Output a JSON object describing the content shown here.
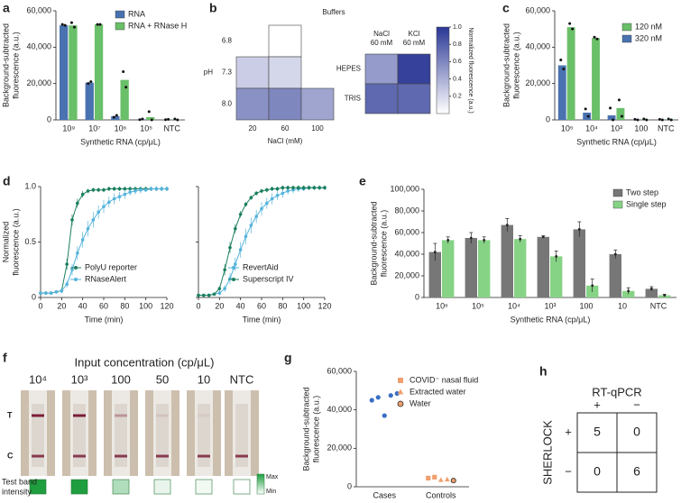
{
  "chart_data": [
    {
      "panel": "a",
      "type": "bar",
      "categories": [
        "10⁹",
        "10⁷",
        "10⁶",
        "10⁵",
        "NTC"
      ],
      "series": [
        {
          "name": "RNA",
          "color": "#4a72b0",
          "values": [
            52000,
            20500,
            2000,
            300,
            200
          ],
          "points": [
            [
              52500,
              52000
            ],
            [
              20000,
              21000
            ],
            [
              1500,
              2500
            ],
            [
              100,
              500
            ],
            [
              100,
              300
            ]
          ]
        },
        {
          "name": "RNA + RNase H",
          "color": "#6abf69",
          "values": [
            52000,
            52500,
            22000,
            1500,
            200
          ],
          "points": [
            [
              53500,
              51000
            ],
            [
              52500,
              52500
            ],
            [
              26500,
              18000
            ],
            [
              4500,
              0
            ],
            [
              500,
              0
            ]
          ]
        }
      ],
      "ylim": [
        0,
        60000
      ],
      "yticks": [
        0,
        {
          "value": 20000,
          "label": "20,000"
        },
        {
          "value": 40000,
          "label": "40,000"
        },
        {
          "value": 60000,
          "label": "60,000"
        }
      ],
      "ylabel": [
        "Background-subtracted",
        "fluorescence (a.u.)"
      ],
      "xlabel": "Synthetic RNA (cp/μL)",
      "legend": "top-right"
    },
    {
      "panel": "b",
      "type": "heatmap",
      "title": "Buffers",
      "heatmaps": [
        {
          "ylabel": "pH",
          "xlabel": "NaCl (mM)",
          "rows": [
            "6.8",
            "7.3",
            "8.0"
          ],
          "columns": [
            "20",
            "60",
            "100"
          ],
          "values": [
            [
              null,
              0.0,
              null
            ],
            [
              0.25,
              0.2,
              null
            ],
            [
              0.55,
              0.6,
              0.45
            ]
          ]
        },
        {
          "rows": [
            "HEPES",
            "TRIS"
          ],
          "columns": [
            [
              "NaCl",
              "60 mM"
            ],
            [
              "KCl",
              "60 mM"
            ]
          ],
          "values": [
            [
              0.5,
              0.95
            ],
            [
              0.75,
              0.75
            ]
          ]
        }
      ],
      "colorbar": {
        "label": "Normalized fluorescence (a.u.)",
        "lim": [
          0,
          1
        ],
        "ticks": [
          0.2,
          0.4,
          0.6,
          0.8,
          {
            "value": 1,
            "label": "1.0"
          }
        ],
        "colors": [
          "#ffffff",
          "#2a3795"
        ]
      }
    },
    {
      "panel": "c",
      "type": "bar",
      "categories": [
        "10⁵",
        "10⁴",
        "10³",
        "100",
        "NTC"
      ],
      "series": [
        {
          "name": "320 nM",
          "color": "#4a72b0",
          "values": [
            30000,
            4000,
            2500,
            200,
            200
          ],
          "points": [
            [
              33000,
              28000
            ],
            [
              6000,
              2000
            ],
            [
              6500,
              0
            ],
            [
              300,
              0
            ],
            [
              300,
              0
            ]
          ]
        },
        {
          "name": "120 nM",
          "color": "#6abf69",
          "values": [
            51000,
            45000,
            6500,
            300,
            300
          ],
          "points": [
            [
              53000,
              50000
            ],
            [
              45500,
              44500
            ],
            [
              11000,
              2000
            ],
            [
              500,
              0
            ],
            [
              500,
              0
            ]
          ]
        }
      ],
      "legend_reversed": true,
      "ylim": [
        0,
        60000
      ],
      "yticks": [
        0,
        {
          "value": 20000,
          "label": "20,000"
        },
        {
          "value": 40000,
          "label": "40,000"
        },
        {
          "value": 60000,
          "label": "60,000"
        }
      ],
      "ylabel": [
        "Background-subtracted",
        "fluorescence (a.u.)"
      ],
      "xlabel": "Synthetic RNA (cp/μL)",
      "legend": "top-right"
    },
    {
      "panel": "d",
      "type": "line",
      "x": [
        0,
        5,
        10,
        15,
        20,
        25,
        30,
        35,
        40,
        45,
        50,
        55,
        60,
        65,
        70,
        75,
        80,
        85,
        90,
        95,
        100,
        105,
        110,
        115,
        120
      ],
      "series": [
        {
          "name": "PolyU reporter",
          "color": "#1b7f5f",
          "values": [
            0.04,
            0.04,
            0.04,
            0.05,
            0.06,
            0.3,
            0.7,
            0.85,
            0.93,
            0.96,
            0.97,
            0.97,
            0.97,
            0.98,
            0.98,
            0.98,
            0.98,
            0.98,
            0.98,
            0.98,
            0.98,
            0.98,
            0.98,
            0.98,
            0.98
          ],
          "errors": [
            0.01,
            0.01,
            0.01,
            0.01,
            0.02,
            0.05,
            0.05,
            0.04,
            0.03,
            0.02,
            0.02,
            0.02,
            0.02,
            0.02,
            0.02,
            0.02,
            0.02,
            0.02,
            0.02,
            0.02,
            0.02,
            0.02,
            0.02,
            0.02,
            0.02
          ]
        },
        {
          "name": "RNaseAlert",
          "color": "#55b4dc",
          "values": [
            0.04,
            0.04,
            0.04,
            0.05,
            0.06,
            0.12,
            0.25,
            0.4,
            0.52,
            0.62,
            0.7,
            0.77,
            0.82,
            0.86,
            0.89,
            0.91,
            0.93,
            0.95,
            0.96,
            0.97,
            0.97,
            0.98,
            0.98,
            0.98,
            0.98
          ],
          "errors": [
            0.01,
            0.01,
            0.01,
            0.01,
            0.02,
            0.03,
            0.05,
            0.06,
            0.07,
            0.07,
            0.07,
            0.06,
            0.06,
            0.05,
            0.05,
            0.04,
            0.04,
            0.03,
            0.03,
            0.03,
            0.02,
            0.02,
            0.02,
            0.02,
            0.02
          ]
        }
      ],
      "xlim": [
        0,
        120
      ],
      "xticks": [
        0,
        20,
        40,
        60,
        80,
        100,
        120
      ],
      "ylim": [
        0,
        1
      ],
      "yticks": [
        0,
        0.5,
        {
          "value": 1,
          "label": "1.0"
        }
      ],
      "ylabel": [
        "Normalized",
        "fluorescence (a.u.)"
      ],
      "xlabel": "Time (min)",
      "legend": "bottom-right"
    },
    {
      "type": "line",
      "x": [
        0,
        5,
        10,
        15,
        20,
        25,
        30,
        35,
        40,
        45,
        50,
        55,
        60,
        65,
        70,
        75,
        80,
        85,
        90,
        95,
        100,
        105,
        110,
        115,
        120
      ],
      "series": [
        {
          "name": "RevertAid",
          "color": "#55b4dc",
          "values": [
            0.02,
            0.02,
            0.02,
            0.03,
            0.04,
            0.08,
            0.17,
            0.3,
            0.43,
            0.55,
            0.65,
            0.73,
            0.8,
            0.85,
            0.89,
            0.92,
            0.94,
            0.96,
            0.97,
            0.98,
            0.98,
            0.99,
            0.99,
            0.99,
            0.99
          ],
          "errors": [
            0.01,
            0.01,
            0.01,
            0.01,
            0.02,
            0.03,
            0.05,
            0.06,
            0.07,
            0.07,
            0.07,
            0.06,
            0.06,
            0.05,
            0.05,
            0.04,
            0.04,
            0.03,
            0.03,
            0.03,
            0.02,
            0.02,
            0.02,
            0.02,
            0.02
          ]
        },
        {
          "name": "Superscript IV",
          "color": "#1b7f5f",
          "values": [
            0.02,
            0.02,
            0.02,
            0.03,
            0.08,
            0.25,
            0.45,
            0.62,
            0.75,
            0.84,
            0.9,
            0.94,
            0.96,
            0.97,
            0.98,
            0.98,
            0.99,
            0.99,
            0.99,
            0.99,
            0.99,
            0.99,
            0.99,
            0.99,
            0.99
          ],
          "errors": [
            0.01,
            0.01,
            0.01,
            0.01,
            0.02,
            0.05,
            0.05,
            0.04,
            0.03,
            0.02,
            0.02,
            0.02,
            0.02,
            0.02,
            0.02,
            0.02,
            0.02,
            0.02,
            0.02,
            0.02,
            0.02,
            0.02,
            0.02,
            0.02,
            0.02
          ]
        }
      ],
      "xlim": [
        0,
        120
      ],
      "xticks": [
        0,
        20,
        40,
        60,
        80,
        100,
        120
      ],
      "ylim": [
        0,
        1
      ],
      "yticks": [
        0,
        0.5,
        {
          "value": 1,
          "label": "1.0"
        }
      ],
      "ytick_labels": false,
      "xlabel": "Time (min)",
      "legend": "bottom-right"
    },
    {
      "panel": "e",
      "type": "bar",
      "categories": [
        "10⁶",
        "10⁵",
        "10⁴",
        "10³",
        "100",
        "10",
        "NTC"
      ],
      "series": [
        {
          "name": "Two step",
          "color": "#777777",
          "values": [
            42000,
            55000,
            67000,
            56000,
            63000,
            40000,
            8000
          ],
          "errors": [
            8000,
            5000,
            6000,
            1000,
            7000,
            4000,
            2000
          ]
        },
        {
          "name": "Single step",
          "color": "#86d386",
          "values": [
            53000,
            53000,
            54000,
            38000,
            11000,
            6000,
            2000
          ],
          "errors": [
            3000,
            3000,
            3000,
            5000,
            6000,
            3000,
            1000
          ]
        }
      ],
      "ylim": [
        0,
        100000
      ],
      "yticks": [
        0,
        {
          "value": 20000,
          "label": "20,000"
        },
        {
          "value": 40000,
          "label": "40,000"
        },
        {
          "value": 60000,
          "label": "60,000"
        },
        {
          "value": 80000,
          "label": "80,000"
        },
        {
          "value": 100000,
          "label": "100,000"
        }
      ],
      "ylabel": [
        "Background-subtracted",
        "fluorescence (a.u.)"
      ],
      "xlabel": "Synthetic RNA (cp/μL)",
      "legend": "top-right"
    },
    {
      "panel": "f",
      "type": "strips",
      "title": "Input concentration (cp/μL)",
      "labels": [
        "10⁴",
        "10³",
        "100",
        "50",
        "10",
        "NTC"
      ],
      "bands": [
        "T",
        "C"
      ],
      "intensity": [
        1,
        1,
        0.35,
        0.1,
        0.06,
        0
      ],
      "intensity_label": [
        "Test band",
        "intensity"
      ],
      "scale": [
        "Max",
        "Min"
      ],
      "color": "#1e9e3e"
    },
    {
      "panel": "g",
      "type": "scatter",
      "categories": [
        "Cases",
        "Controls"
      ],
      "series": [
        {
          "category": 0,
          "marker": "circle",
          "color": "#3a6fc4",
          "values": [
            45000,
            46500,
            37000,
            47500,
            48500
          ]
        },
        {
          "name": "COVID⁻ nasal fluid",
          "category": 1,
          "marker": "square",
          "color": "#f0a070",
          "values": [
            4500,
            5000
          ]
        },
        {
          "name": "Extracted water",
          "category": 1,
          "marker": "triangle",
          "color": "#f0a070",
          "values": [
            3500,
            3800
          ]
        },
        {
          "name": "Water",
          "category": 1,
          "marker": "circle",
          "color": "#f0a070",
          "edgecolor": "#222222",
          "values": [
            3200
          ]
        }
      ],
      "ylim": [
        0,
        60000
      ],
      "yticks": [
        0,
        {
          "value": 20000,
          "label": "20,000"
        },
        {
          "value": 40000,
          "label": "40,000"
        },
        {
          "value": 60000,
          "label": "60,000"
        }
      ],
      "ylabel": [
        "Background-subtracted",
        "fluorescence (a.u.)"
      ],
      "legend": "top-right"
    },
    {
      "panel": "h",
      "type": "table",
      "col_header": "RT-qPCR",
      "columns": [
        "+",
        "−"
      ],
      "row_header": "SHERLOCK",
      "rows": [
        "+",
        "−"
      ],
      "cells": [
        [
          5,
          0
        ],
        [
          0,
          6
        ]
      ]
    }
  ]
}
